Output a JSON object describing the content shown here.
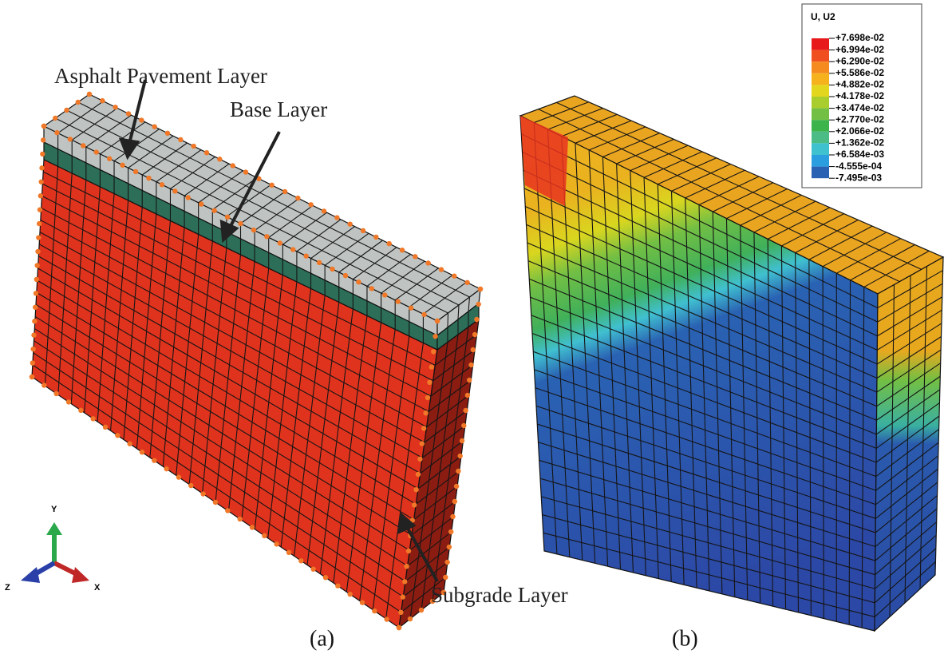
{
  "annotations": {
    "asphalt": "Asphalt Pavement Layer",
    "base": "Base Layer",
    "subgrade": "Subgrade Layer"
  },
  "captions": {
    "a": "(a)",
    "b": "(b)"
  },
  "triad": {
    "y": "Y",
    "x": "X",
    "z": "Z"
  },
  "legend": {
    "title": "U, U2",
    "labels": [
      "+7.698e-02",
      "+6.994e-02",
      "+6.290e-02",
      "+5.586e-02",
      "+4.882e-02",
      "+4.178e-02",
      "+3.474e-02",
      "+2.770e-02",
      "+2.066e-02",
      "+1.362e-02",
      "+6.584e-03",
      "-4.555e-04",
      "-7.495e-03"
    ],
    "colors": [
      "#e8191b",
      "#f0501f",
      "#f58a1f",
      "#f5b21c",
      "#e3d61e",
      "#aacd2e",
      "#72bf44",
      "#3db34c",
      "#4cbc86",
      "#40c1d0",
      "#2b9ee0",
      "#2a62b3",
      "#2c3f9e"
    ]
  }
}
